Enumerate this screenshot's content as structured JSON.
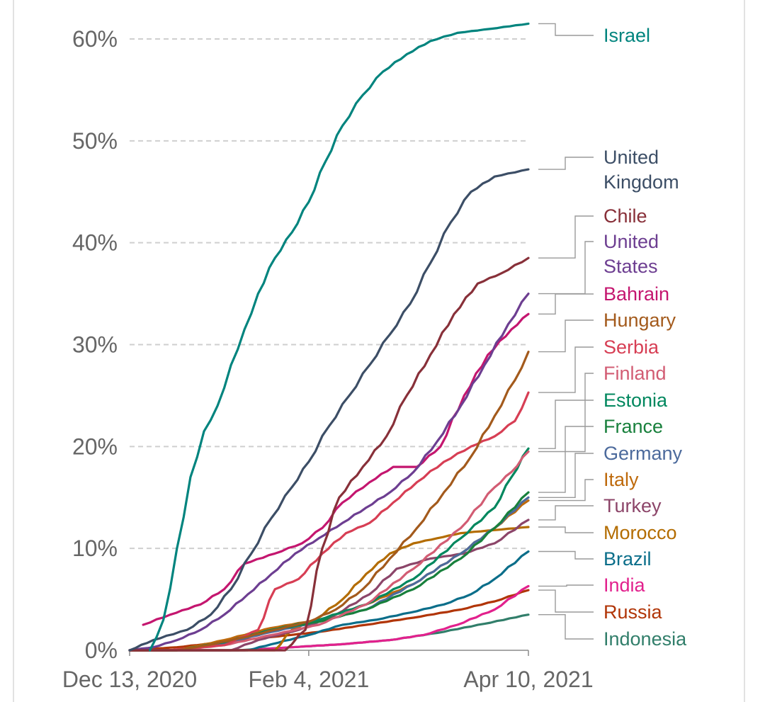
{
  "chart_data": {
    "type": "line",
    "x_ticks": [
      "Dec 13, 2020",
      "Feb 4, 2021",
      "Apr 10, 2021"
    ],
    "x_range": [
      "2020-12-13",
      "2021-04-10"
    ],
    "y_ticks": [
      "0%",
      "10%",
      "20%",
      "30%",
      "40%",
      "50%",
      "60%"
    ],
    "ylim": [
      0,
      60
    ],
    "y_unit": "%",
    "grid": true,
    "legend": "right",
    "series": [
      {
        "name": "Israel",
        "color": "#00847e",
        "points": [
          [
            "2020-12-19",
            0
          ],
          [
            "2020-12-23",
            3
          ],
          [
            "2020-12-27",
            10
          ],
          [
            "2020-12-31",
            17
          ],
          [
            "2021-01-04",
            21.5
          ],
          [
            "2021-01-08",
            24
          ],
          [
            "2021-01-12",
            28
          ],
          [
            "2021-01-16",
            31.5
          ],
          [
            "2021-01-20",
            35
          ],
          [
            "2021-01-25",
            38.5
          ],
          [
            "2021-01-30",
            41
          ],
          [
            "2021-02-04",
            44
          ],
          [
            "2021-02-09",
            48
          ],
          [
            "2021-02-14",
            51.5
          ],
          [
            "2021-02-20",
            54.5
          ],
          [
            "2021-02-26",
            56.8
          ],
          [
            "2021-03-05",
            58.5
          ],
          [
            "2021-03-12",
            59.8
          ],
          [
            "2021-03-20",
            60.6
          ],
          [
            "2021-03-30",
            61
          ],
          [
            "2021-04-10",
            61.5
          ]
        ]
      },
      {
        "name": "United Kingdom",
        "color": "#3c4e66",
        "points": [
          [
            "2020-12-13",
            0
          ],
          [
            "2020-12-20",
            1
          ],
          [
            "2020-12-30",
            2
          ],
          [
            "2021-01-06",
            3.5
          ],
          [
            "2021-01-12",
            6
          ],
          [
            "2021-01-18",
            9.5
          ],
          [
            "2021-01-24",
            13
          ],
          [
            "2021-01-30",
            16
          ],
          [
            "2021-02-04",
            18.5
          ],
          [
            "2021-02-10",
            22
          ],
          [
            "2021-02-16",
            25
          ],
          [
            "2021-02-22",
            28
          ],
          [
            "2021-02-28",
            31
          ],
          [
            "2021-03-06",
            34
          ],
          [
            "2021-03-12",
            38
          ],
          [
            "2021-03-18",
            42
          ],
          [
            "2021-03-24",
            45
          ],
          [
            "2021-03-31",
            46.5
          ],
          [
            "2021-04-10",
            47.2
          ]
        ]
      },
      {
        "name": "Chile",
        "color": "#883039",
        "points": [
          [
            "2020-12-13",
            0
          ],
          [
            "2021-01-28",
            0
          ],
          [
            "2021-02-03",
            2
          ],
          [
            "2021-02-08",
            10
          ],
          [
            "2021-02-13",
            15
          ],
          [
            "2021-02-20",
            18
          ],
          [
            "2021-02-27",
            21
          ],
          [
            "2021-03-05",
            25
          ],
          [
            "2021-03-12",
            29
          ],
          [
            "2021-03-19",
            33
          ],
          [
            "2021-03-26",
            36
          ],
          [
            "2021-04-02",
            37
          ],
          [
            "2021-04-10",
            38.5
          ]
        ]
      },
      {
        "name": "United States",
        "color": "#6d3e91",
        "points": [
          [
            "2020-12-13",
            0
          ],
          [
            "2020-12-20",
            0.3
          ],
          [
            "2020-12-27",
            1
          ],
          [
            "2021-01-03",
            2
          ],
          [
            "2021-01-10",
            3.5
          ],
          [
            "2021-01-17",
            5.5
          ],
          [
            "2021-01-24",
            7.5
          ],
          [
            "2021-01-31",
            9.5
          ],
          [
            "2021-02-07",
            11
          ],
          [
            "2021-02-14",
            12.5
          ],
          [
            "2021-02-21",
            14
          ],
          [
            "2021-02-28",
            15.5
          ],
          [
            "2021-03-07",
            17.5
          ],
          [
            "2021-03-14",
            20.5
          ],
          [
            "2021-03-21",
            24
          ],
          [
            "2021-03-28",
            28
          ],
          [
            "2021-04-04",
            32
          ],
          [
            "2021-04-10",
            35
          ]
        ]
      },
      {
        "name": "Bahrain",
        "color": "#c4166f",
        "points": [
          [
            "2020-12-17",
            2.5
          ],
          [
            "2020-12-25",
            3.5
          ],
          [
            "2021-01-03",
            4.5
          ],
          [
            "2021-01-10",
            6
          ],
          [
            "2021-01-16",
            8.5
          ],
          [
            "2021-01-25",
            9.5
          ],
          [
            "2021-02-02",
            10.5
          ],
          [
            "2021-02-08",
            12
          ],
          [
            "2021-02-14",
            14.5
          ],
          [
            "2021-02-22",
            16.5
          ],
          [
            "2021-03-01",
            18
          ],
          [
            "2021-03-08",
            18
          ],
          [
            "2021-03-15",
            20
          ],
          [
            "2021-03-22",
            25
          ],
          [
            "2021-03-29",
            29
          ],
          [
            "2021-04-05",
            31.5
          ],
          [
            "2021-04-10",
            33
          ]
        ]
      },
      {
        "name": "Hungary",
        "color": "#a35a1c",
        "points": [
          [
            "2020-12-13",
            0
          ],
          [
            "2020-12-27",
            0
          ],
          [
            "2021-01-05",
            0.5
          ],
          [
            "2021-01-15",
            1.2
          ],
          [
            "2021-01-25",
            2
          ],
          [
            "2021-02-04",
            2.8
          ],
          [
            "2021-02-12",
            4
          ],
          [
            "2021-02-20",
            6
          ],
          [
            "2021-02-28",
            9
          ],
          [
            "2021-03-08",
            12
          ],
          [
            "2021-03-16",
            15.5
          ],
          [
            "2021-03-24",
            19
          ],
          [
            "2021-03-31",
            23
          ],
          [
            "2021-04-06",
            26.5
          ],
          [
            "2021-04-10",
            29.3
          ]
        ]
      },
      {
        "name": "Serbia",
        "color": "#d73e54",
        "points": [
          [
            "2020-12-13",
            0
          ],
          [
            "2020-12-24",
            0
          ],
          [
            "2021-01-10",
            0.5
          ],
          [
            "2021-01-20",
            2
          ],
          [
            "2021-01-25",
            6
          ],
          [
            "2021-02-01",
            7
          ],
          [
            "2021-02-08",
            9.5
          ],
          [
            "2021-02-15",
            11.5
          ],
          [
            "2021-02-22",
            12.5
          ],
          [
            "2021-03-01",
            14.5
          ],
          [
            "2021-03-08",
            16.5
          ],
          [
            "2021-03-16",
            18.5
          ],
          [
            "2021-03-24",
            20
          ],
          [
            "2021-03-31",
            21
          ],
          [
            "2021-04-06",
            22.5
          ],
          [
            "2021-04-10",
            25.3
          ]
        ]
      },
      {
        "name": "Finland",
        "color": "#d25c73",
        "points": [
          [
            "2020-12-13",
            0
          ],
          [
            "2020-12-27",
            0
          ],
          [
            "2021-01-10",
            0.5
          ],
          [
            "2021-01-24",
            1.5
          ],
          [
            "2021-02-07",
            2.5
          ],
          [
            "2021-02-21",
            4.5
          ],
          [
            "2021-03-07",
            8
          ],
          [
            "2021-03-21",
            12
          ],
          [
            "2021-03-31",
            16
          ],
          [
            "2021-04-05",
            17.5
          ],
          [
            "2021-04-10",
            19.5
          ]
        ]
      },
      {
        "name": "Estonia",
        "color": "#00875e",
        "points": [
          [
            "2020-12-13",
            0
          ],
          [
            "2020-12-27",
            0
          ],
          [
            "2021-01-10",
            0.8
          ],
          [
            "2021-01-24",
            2
          ],
          [
            "2021-02-07",
            3
          ],
          [
            "2021-02-21",
            4.5
          ],
          [
            "2021-03-07",
            7
          ],
          [
            "2021-03-21",
            11
          ],
          [
            "2021-03-31",
            14
          ],
          [
            "2021-04-05",
            17
          ],
          [
            "2021-04-10",
            19.8
          ]
        ]
      },
      {
        "name": "France",
        "color": "#18803c",
        "points": [
          [
            "2020-12-13",
            0
          ],
          [
            "2020-12-27",
            0
          ],
          [
            "2021-01-10",
            0.8
          ],
          [
            "2021-01-24",
            2
          ],
          [
            "2021-02-07",
            2.8
          ],
          [
            "2021-02-21",
            4
          ],
          [
            "2021-03-07",
            6
          ],
          [
            "2021-03-21",
            9
          ],
          [
            "2021-03-31",
            12
          ],
          [
            "2021-04-10",
            15.5
          ]
        ]
      },
      {
        "name": "Germany",
        "color": "#4c6a9c",
        "points": [
          [
            "2020-12-13",
            0
          ],
          [
            "2020-12-27",
            0
          ],
          [
            "2021-01-10",
            0.7
          ],
          [
            "2021-01-24",
            1.8
          ],
          [
            "2021-02-07",
            2.8
          ],
          [
            "2021-02-21",
            4
          ],
          [
            "2021-03-07",
            6.5
          ],
          [
            "2021-03-21",
            9.5
          ],
          [
            "2021-03-31",
            12
          ],
          [
            "2021-04-10",
            15
          ]
        ]
      },
      {
        "name": "Italy",
        "color": "#be6a0c",
        "points": [
          [
            "2020-12-13",
            0
          ],
          [
            "2020-12-27",
            0
          ],
          [
            "2021-01-10",
            1
          ],
          [
            "2021-01-24",
            2.2
          ],
          [
            "2021-02-07",
            3
          ],
          [
            "2021-02-21",
            4.5
          ],
          [
            "2021-03-07",
            6.5
          ],
          [
            "2021-03-21",
            9.5
          ],
          [
            "2021-03-31",
            12
          ],
          [
            "2021-04-10",
            14.7
          ]
        ]
      },
      {
        "name": "Turkey",
        "color": "#8c4569",
        "points": [
          [
            "2020-12-13",
            0
          ],
          [
            "2021-01-12",
            0
          ],
          [
            "2021-01-20",
            1
          ],
          [
            "2021-02-01",
            2
          ],
          [
            "2021-02-12",
            3.5
          ],
          [
            "2021-02-22",
            5.5
          ],
          [
            "2021-03-02",
            8
          ],
          [
            "2021-03-12",
            9
          ],
          [
            "2021-03-22",
            9.5
          ],
          [
            "2021-03-31",
            10.5
          ],
          [
            "2021-04-10",
            12.8
          ]
        ]
      },
      {
        "name": "Morocco",
        "color": "#b36c00",
        "points": [
          [
            "2020-12-13",
            0
          ],
          [
            "2021-01-25",
            0
          ],
          [
            "2021-01-30",
            2
          ],
          [
            "2021-02-06",
            3
          ],
          [
            "2021-02-14",
            5
          ],
          [
            "2021-02-21",
            7.5
          ],
          [
            "2021-02-28",
            9.5
          ],
          [
            "2021-03-07",
            10.5
          ],
          [
            "2021-03-14",
            11
          ],
          [
            "2021-03-21",
            11.5
          ],
          [
            "2021-03-31",
            11.8
          ],
          [
            "2021-04-10",
            12.1
          ]
        ]
      },
      {
        "name": "Brazil",
        "color": "#0b6e8a",
        "points": [
          [
            "2020-12-13",
            0
          ],
          [
            "2021-01-17",
            0
          ],
          [
            "2021-01-24",
            0.6
          ],
          [
            "2021-02-04",
            1.5
          ],
          [
            "2021-02-14",
            2.5
          ],
          [
            "2021-02-24",
            3
          ],
          [
            "2021-03-06",
            3.7
          ],
          [
            "2021-03-16",
            4.5
          ],
          [
            "2021-03-24",
            5.5
          ],
          [
            "2021-03-31",
            7
          ],
          [
            "2021-04-10",
            9.7
          ]
        ]
      },
      {
        "name": "India",
        "color": "#e2218d",
        "points": [
          [
            "2020-12-13",
            0
          ],
          [
            "2021-01-16",
            0
          ],
          [
            "2021-01-30",
            0.3
          ],
          [
            "2021-02-14",
            0.6
          ],
          [
            "2021-02-28",
            1
          ],
          [
            "2021-03-10",
            1.5
          ],
          [
            "2021-03-20",
            2.5
          ],
          [
            "2021-03-31",
            4
          ],
          [
            "2021-04-10",
            6.3
          ]
        ]
      },
      {
        "name": "Russia",
        "color": "#b13507",
        "points": [
          [
            "2020-12-13",
            0
          ],
          [
            "2020-12-27",
            0.3
          ],
          [
            "2021-01-10",
            0.8
          ],
          [
            "2021-01-24",
            1.3
          ],
          [
            "2021-02-07",
            1.8
          ],
          [
            "2021-02-21",
            2.5
          ],
          [
            "2021-03-07",
            3.2
          ],
          [
            "2021-03-21",
            4
          ],
          [
            "2021-03-31",
            4.8
          ],
          [
            "2021-04-10",
            5.9
          ]
        ]
      },
      {
        "name": "Indonesia",
        "color": "#317e6a",
        "points": [
          [
            "2020-12-13",
            0
          ],
          [
            "2021-01-14",
            0
          ],
          [
            "2021-01-30",
            0.3
          ],
          [
            "2021-02-14",
            0.6
          ],
          [
            "2021-02-28",
            1
          ],
          [
            "2021-03-14",
            1.7
          ],
          [
            "2021-03-28",
            2.6
          ],
          [
            "2021-04-10",
            3.5
          ]
        ]
      }
    ]
  }
}
